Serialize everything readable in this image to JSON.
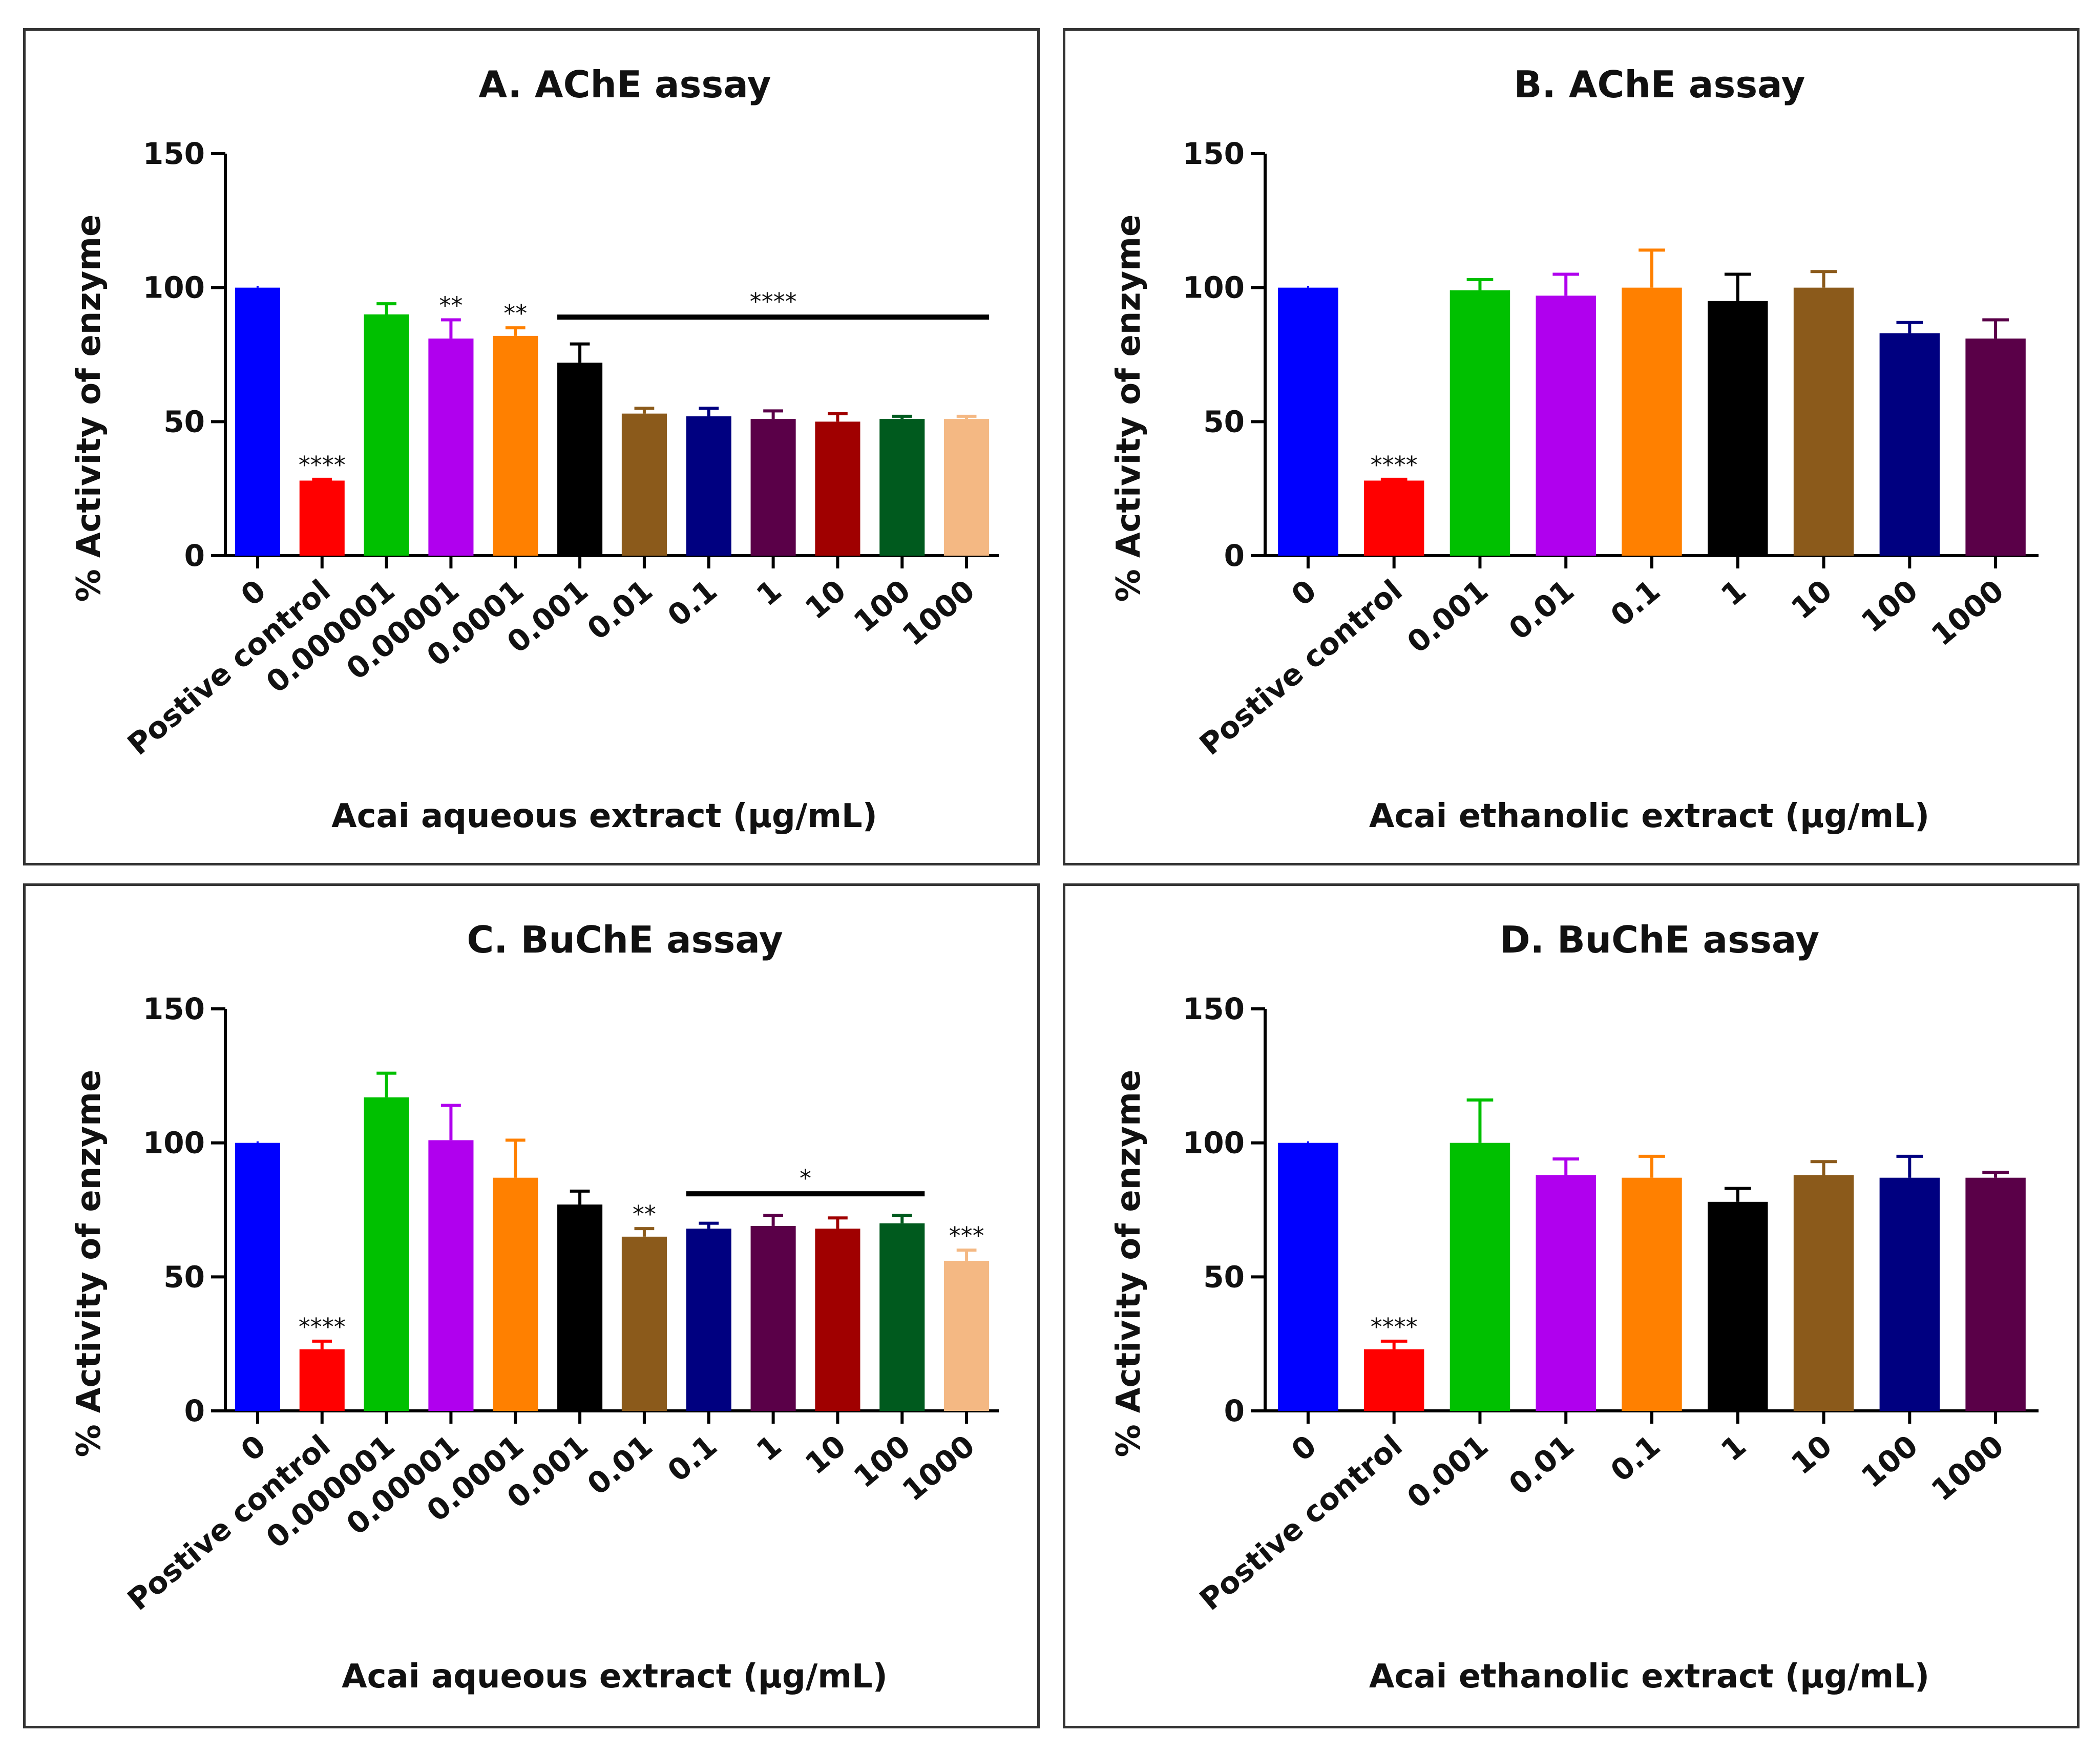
{
  "chart_data": [
    {
      "id": "A",
      "type": "bar",
      "title": "A. AChE assay",
      "ylabel": "% Activity of enzyme",
      "xlabel": "Acai aqueous extract (µg/mL)",
      "ylim": [
        0,
        150
      ],
      "yticks": [
        "0",
        "50",
        "100",
        "150"
      ],
      "categories": [
        "0",
        "Postive control",
        "0.000001",
        "0.00001",
        "0.0001",
        "0.001",
        "0.01",
        "0.1",
        "1",
        "10",
        "100",
        "1000"
      ],
      "values": [
        100,
        28,
        90,
        81,
        82,
        72,
        53,
        52,
        51,
        50,
        51,
        51
      ],
      "errors": [
        0,
        0.5,
        4,
        7,
        3,
        7,
        2,
        3,
        3,
        3,
        1,
        1
      ],
      "colors": [
        "#0000ff",
        "#ff0000",
        "#00c000",
        "#b000ee",
        "#ff8000",
        "#000000",
        "#8b5a1b",
        "#000080",
        "#5a0048",
        "#a00000",
        "#005a1e",
        "#f4b883"
      ],
      "bar_annotations": [
        {
          "index": 1,
          "label": "****"
        },
        {
          "index": 3,
          "label": "**"
        },
        {
          "index": 4,
          "label": "**"
        }
      ],
      "span_annotations": [
        {
          "from": 5,
          "to": 11,
          "y": 89,
          "label": "****"
        }
      ]
    },
    {
      "id": "B",
      "type": "bar",
      "title": "B. AChE assay",
      "ylabel": "% Activity of enzyme",
      "xlabel": "Acai ethanolic extract (µg/mL)",
      "ylim": [
        0,
        150
      ],
      "yticks": [
        "0",
        "50",
        "100",
        "150"
      ],
      "categories": [
        "0",
        "Postive control",
        "0.001",
        "0.01",
        "0.1",
        "1",
        "10",
        "100",
        "1000"
      ],
      "values": [
        100,
        28,
        99,
        97,
        100,
        95,
        100,
        83,
        81
      ],
      "errors": [
        0,
        0.5,
        4,
        8,
        14,
        10,
        6,
        4,
        7
      ],
      "colors": [
        "#0000ff",
        "#ff0000",
        "#00c000",
        "#b000ee",
        "#ff8000",
        "#000000",
        "#8b5a1b",
        "#000080",
        "#5a0048"
      ],
      "bar_annotations": [
        {
          "index": 1,
          "label": "****"
        }
      ],
      "span_annotations": []
    },
    {
      "id": "C",
      "type": "bar",
      "title": "C. BuChE assay",
      "ylabel": "% Activity of enzyme",
      "xlabel": "Acai aqueous extract (µg/mL)",
      "ylim": [
        0,
        150
      ],
      "yticks": [
        "0",
        "50",
        "100",
        "150"
      ],
      "categories": [
        "0",
        "Postive control",
        "0.000001",
        "0.00001",
        "0.0001",
        "0.001",
        "0.01",
        "0.1",
        "1",
        "10",
        "100",
        "1000"
      ],
      "values": [
        100,
        23,
        117,
        101,
        87,
        77,
        65,
        68,
        69,
        68,
        70,
        56
      ],
      "errors": [
        0,
        3,
        9,
        13,
        14,
        5,
        3,
        2,
        4,
        4,
        3,
        4
      ],
      "colors": [
        "#0000ff",
        "#ff0000",
        "#00c000",
        "#b000ee",
        "#ff8000",
        "#000000",
        "#8b5a1b",
        "#000080",
        "#5a0048",
        "#a00000",
        "#005a1e",
        "#f4b883"
      ],
      "bar_annotations": [
        {
          "index": 1,
          "label": "****"
        },
        {
          "index": 6,
          "label": "**"
        },
        {
          "index": 11,
          "label": "***"
        }
      ],
      "span_annotations": [
        {
          "from": 7,
          "to": 10,
          "y": 81,
          "label": "*"
        }
      ]
    },
    {
      "id": "D",
      "type": "bar",
      "title": "D. BuChE assay",
      "ylabel": "% Activity of enzyme",
      "xlabel": "Acai ethanolic extract (µg/mL)",
      "ylim": [
        0,
        150
      ],
      "yticks": [
        "0",
        "50",
        "100",
        "150"
      ],
      "categories": [
        "0",
        "Postive control",
        "0.001",
        "0.01",
        "0.1",
        "1",
        "10",
        "100",
        "1000"
      ],
      "values": [
        100,
        23,
        100,
        88,
        87,
        78,
        88,
        87,
        87
      ],
      "errors": [
        0,
        3,
        16,
        6,
        8,
        5,
        5,
        8,
        2
      ],
      "colors": [
        "#0000ff",
        "#ff0000",
        "#00c000",
        "#b000ee",
        "#ff8000",
        "#000000",
        "#8b5a1b",
        "#000080",
        "#5a0048"
      ],
      "bar_annotations": [
        {
          "index": 1,
          "label": "****"
        }
      ],
      "span_annotations": []
    }
  ]
}
